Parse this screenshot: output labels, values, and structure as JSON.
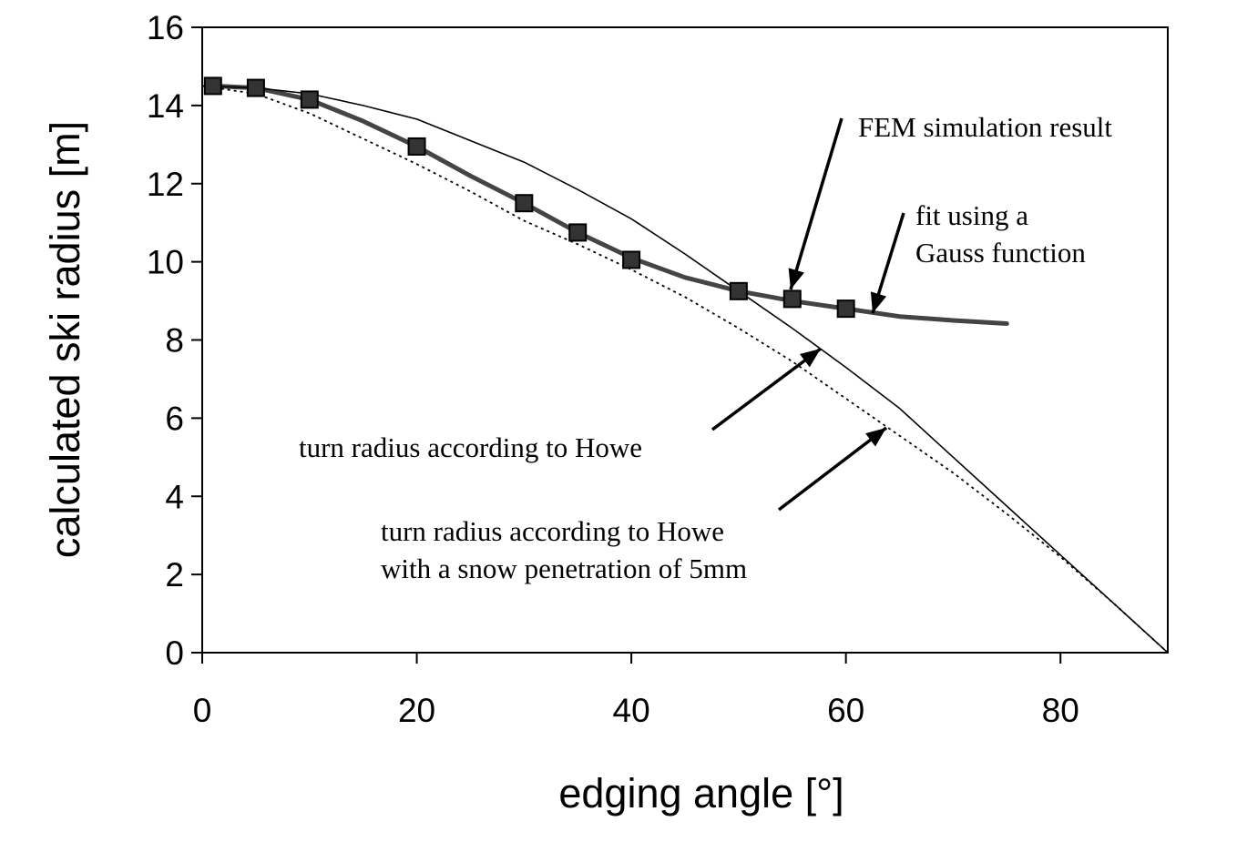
{
  "chart_data": {
    "type": "line",
    "title": "",
    "xlabel": "edging angle [°]",
    "ylabel": "calculated ski radius [m]",
    "xlim": [
      0,
      90
    ],
    "ylim": [
      0,
      16
    ],
    "x_ticks": [
      0,
      20,
      40,
      60,
      80
    ],
    "y_ticks": [
      0,
      2,
      4,
      6,
      8,
      10,
      12,
      14,
      16
    ],
    "grid": false,
    "legend": "none",
    "series": [
      {
        "name": "FEM simulation result",
        "style": "markers",
        "x": [
          1,
          5,
          10,
          20,
          30,
          35,
          40,
          50,
          55,
          60
        ],
        "y": [
          14.5,
          14.45,
          14.15,
          12.95,
          11.5,
          10.75,
          10.05,
          9.25,
          9.05,
          8.8
        ]
      },
      {
        "name": "fit using a Gauss function",
        "style": "thick-solid",
        "x": [
          1,
          5,
          10,
          15,
          20,
          25,
          30,
          35,
          40,
          45,
          50,
          55,
          60,
          65,
          70,
          75
        ],
        "y": [
          14.5,
          14.45,
          14.15,
          13.6,
          12.95,
          12.2,
          11.5,
          10.75,
          10.1,
          9.6,
          9.25,
          9.0,
          8.8,
          8.6,
          8.5,
          8.42
        ]
      },
      {
        "name": "turn radius according to Howe",
        "style": "thin-solid",
        "x": [
          0,
          5,
          10,
          15,
          20,
          25,
          30,
          35,
          40,
          45,
          50,
          55,
          60,
          65,
          70,
          75,
          80,
          85,
          90
        ],
        "y": [
          14.5,
          14.45,
          14.3,
          14.0,
          13.65,
          13.1,
          12.55,
          11.85,
          11.1,
          10.2,
          9.25,
          8.3,
          7.3,
          6.25,
          5.0,
          3.75,
          2.5,
          1.25,
          0.0
        ]
      },
      {
        "name": "turn radius according to Howe with a snow penetration of 5mm",
        "style": "dotted",
        "x": [
          0,
          5,
          10,
          15,
          20,
          25,
          30,
          35,
          40,
          45,
          50,
          55,
          60,
          65,
          70,
          75,
          80,
          85,
          90
        ],
        "y": [
          14.5,
          14.3,
          13.8,
          13.15,
          12.5,
          11.8,
          11.05,
          10.45,
          9.8,
          9.1,
          8.3,
          7.45,
          6.5,
          5.55,
          4.6,
          3.55,
          2.45,
          1.25,
          0.0
        ]
      }
    ],
    "annotations": [
      {
        "lines": [
          "FEM simulation result"
        ]
      },
      {
        "lines": [
          "fit using a",
          "Gauss function"
        ]
      },
      {
        "lines": [
          "turn radius according to Howe"
        ]
      },
      {
        "lines": [
          "turn radius according to Howe",
          "with a snow penetration of 5mm"
        ]
      }
    ]
  }
}
